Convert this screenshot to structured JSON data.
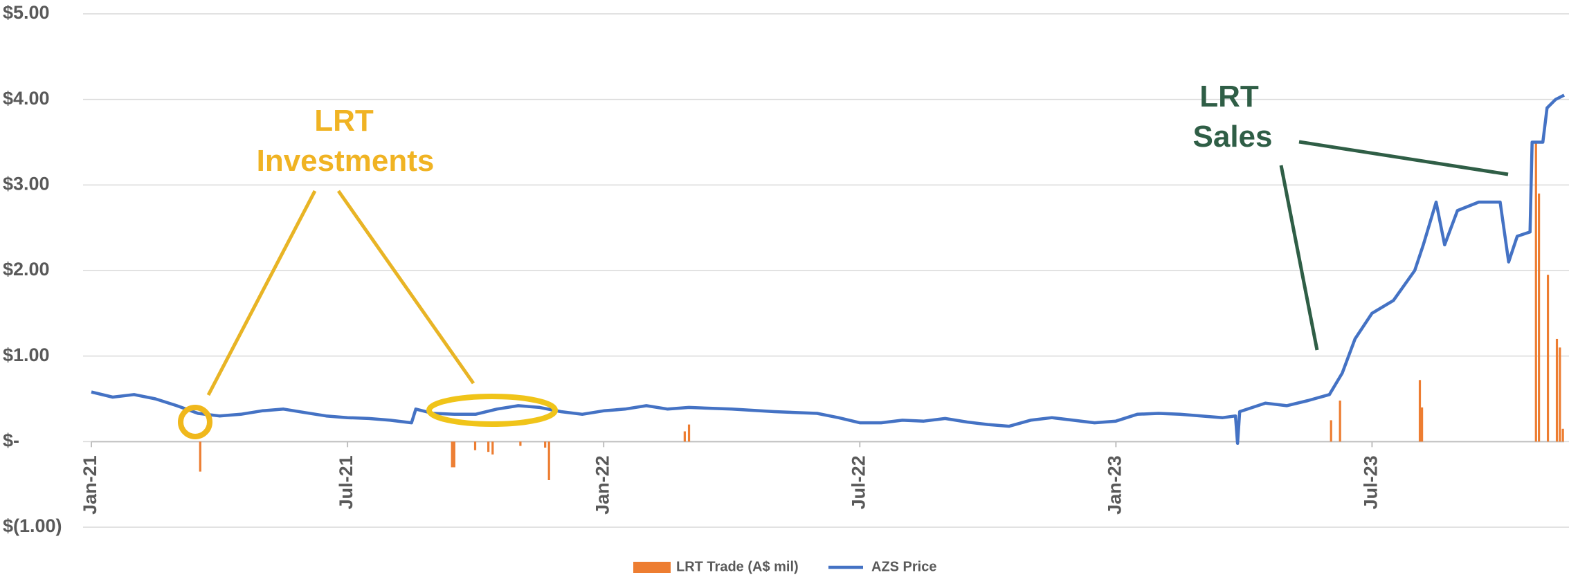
{
  "chart_data": {
    "type": "combo",
    "ylim": [
      -1,
      5
    ],
    "yticks": [
      {
        "value": -1,
        "label": "$(1.00)"
      },
      {
        "value": 0,
        "label": "$-"
      },
      {
        "value": 1,
        "label": "$1.00"
      },
      {
        "value": 2,
        "label": "$2.00"
      },
      {
        "value": 3,
        "label": "$3.00"
      },
      {
        "value": 4,
        "label": "$4.00"
      },
      {
        "value": 5,
        "label": "$5.00"
      }
    ],
    "xlim": [
      0,
      34.5
    ],
    "xticks": [
      {
        "value": 0,
        "label": "Jan-21"
      },
      {
        "value": 6,
        "label": "Jul-21"
      },
      {
        "value": 12,
        "label": "Jan-22"
      },
      {
        "value": 18,
        "label": "Jul-22"
      },
      {
        "value": 24,
        "label": "Jan-23"
      },
      {
        "value": 30,
        "label": "Jul-23"
      }
    ],
    "grid": true,
    "legend": "bottom",
    "series": [
      {
        "name": "LRT Trade (A$ mil)",
        "type": "bar",
        "color": "#ed7d31",
        "x": [
          2.55,
          8.45,
          8.5,
          8.99,
          9.3,
          9.4,
          10.05,
          10.63,
          10.72,
          13.9,
          14.0,
          29.04,
          29.25,
          31.12,
          31.17,
          33.84,
          33.91,
          34.12,
          34.33,
          34.4,
          34.47
        ],
        "values": [
          -0.35,
          -0.3,
          -0.3,
          -0.1,
          -0.12,
          -0.15,
          -0.05,
          -0.07,
          -0.45,
          0.12,
          0.2,
          0.25,
          0.48,
          0.72,
          0.4,
          3.5,
          2.9,
          1.95,
          1.2,
          1.1,
          0.15
        ]
      },
      {
        "name": "AZS Price",
        "type": "line",
        "color": "#4472c4",
        "x": [
          0,
          0.5,
          1,
          1.5,
          2,
          2.5,
          3,
          3.5,
          4,
          4.5,
          5,
          5.5,
          6,
          6.5,
          7,
          7.5,
          7.6,
          8,
          8.5,
          9,
          9.5,
          10,
          10.5,
          11,
          11.5,
          12,
          12.5,
          13,
          13.5,
          14,
          15,
          16,
          17,
          17.5,
          18,
          18.5,
          19,
          19.5,
          20,
          20.5,
          21,
          21.5,
          22,
          22.5,
          23,
          23.5,
          24,
          24.5,
          25,
          25.5,
          26,
          26.5,
          26.8,
          26.85,
          26.9,
          27.5,
          28,
          28.5,
          29,
          29.3,
          29.6,
          30,
          30.5,
          31,
          31.2,
          31.5,
          31.7,
          32,
          32.5,
          33,
          33.2,
          33.4,
          33.7,
          33.75,
          34,
          34.1,
          34.3,
          34.5
        ],
        "values": [
          0.58,
          0.52,
          0.55,
          0.5,
          0.42,
          0.33,
          0.3,
          0.32,
          0.36,
          0.38,
          0.34,
          0.3,
          0.28,
          0.27,
          0.25,
          0.22,
          0.38,
          0.33,
          0.32,
          0.32,
          0.38,
          0.42,
          0.4,
          0.35,
          0.32,
          0.36,
          0.38,
          0.42,
          0.38,
          0.4,
          0.38,
          0.35,
          0.33,
          0.28,
          0.22,
          0.22,
          0.25,
          0.24,
          0.27,
          0.23,
          0.2,
          0.18,
          0.25,
          0.28,
          0.25,
          0.22,
          0.24,
          0.32,
          0.33,
          0.32,
          0.3,
          0.28,
          0.3,
          -0.02,
          0.35,
          0.45,
          0.42,
          0.48,
          0.55,
          0.8,
          1.2,
          1.5,
          1.65,
          2.0,
          2.3,
          2.8,
          2.3,
          2.7,
          2.8,
          2.8,
          2.1,
          2.4,
          2.45,
          3.5,
          3.5,
          3.9,
          4.0,
          4.05
        ]
      }
    ],
    "annotations": [
      {
        "text": [
          "LRT",
          "Investments"
        ]
      },
      {
        "text": [
          "LRT",
          "Sales"
        ]
      }
    ]
  }
}
